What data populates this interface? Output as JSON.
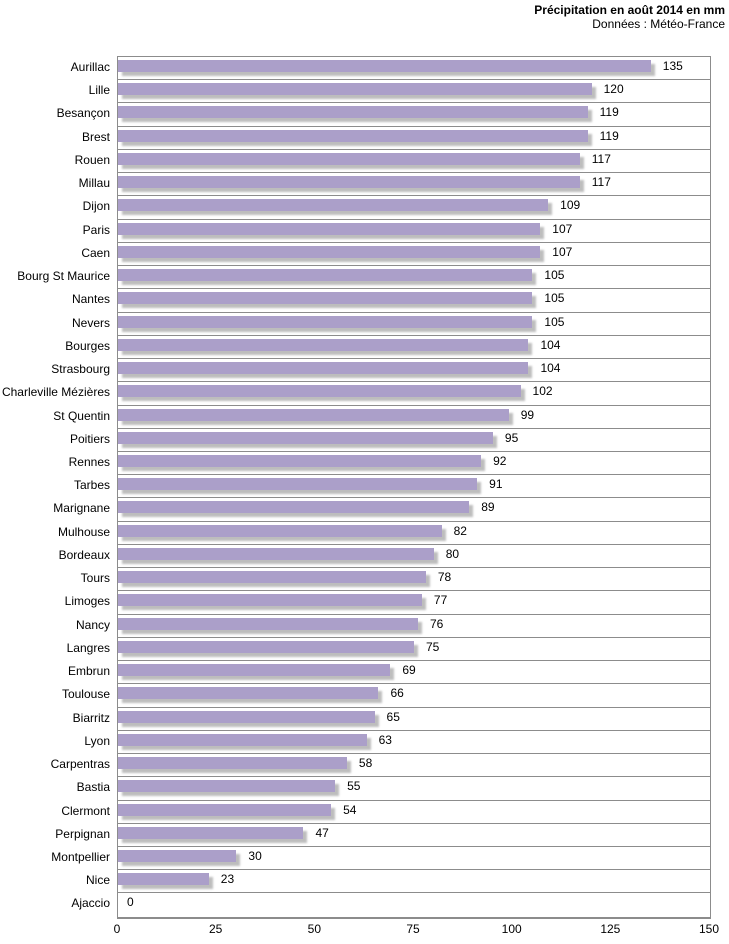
{
  "header": {
    "title": "Précipitation en août 2014 en mm",
    "subtitle": "Données : Météo-France"
  },
  "chart_data": {
    "type": "bar",
    "orientation": "horizontal",
    "title": "Précipitation en août 2014 en mm",
    "subtitle": "Données : Météo-France",
    "xlabel": "",
    "ylabel": "",
    "xlim": [
      0,
      150
    ],
    "x_ticks": [
      0,
      25,
      50,
      75,
      100,
      125,
      150
    ],
    "grid": "horizontal-row-separators-only",
    "legend": "none",
    "bar_color": "#ab9fc9",
    "grid_color": "#8c8c8c",
    "data_labels": "outside-end",
    "categories": [
      "Aurillac",
      "Lille",
      "Besançon",
      "Brest",
      "Rouen",
      "Millau",
      "Dijon",
      "Paris",
      "Caen",
      "Bourg St Maurice",
      "Nantes",
      "Nevers",
      "Bourges",
      "Strasbourg",
      "Charleville Mézières",
      "St Quentin",
      "Poitiers",
      "Rennes",
      "Tarbes",
      "Marignane",
      "Mulhouse",
      "Bordeaux",
      "Tours",
      "Limoges",
      "Nancy",
      "Langres",
      "Embrun",
      "Toulouse",
      "Biarritz",
      "Lyon",
      "Carpentras",
      "Bastia",
      "Clermont",
      "Perpignan",
      "Montpellier",
      "Nice",
      "Ajaccio"
    ],
    "values": [
      135,
      120,
      119,
      119,
      117,
      117,
      109,
      107,
      107,
      105,
      105,
      105,
      104,
      104,
      102,
      99,
      95,
      92,
      91,
      89,
      82,
      80,
      78,
      77,
      76,
      75,
      69,
      66,
      65,
      63,
      58,
      55,
      54,
      47,
      30,
      23,
      0
    ]
  }
}
